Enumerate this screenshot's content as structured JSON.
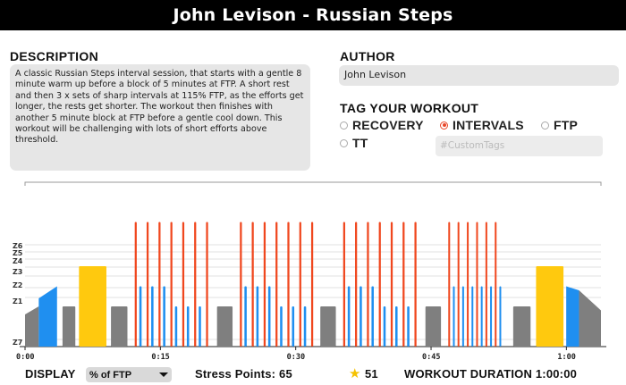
{
  "header": {
    "title": "John Levison - Russian Steps"
  },
  "description": {
    "heading": "DESCRIPTION",
    "text": "A classic Russian Steps interval session, that starts with a gentle 8 minute warm up before a block of 5 minutes at FTP. A short rest and then 3 x sets of sharp intervals at 115% FTP, as the efforts get longer, the rests get shorter. The workout then finishes with another 5 minute block at FTP before a gentle cool down. This workout will be challenging with lots of short efforts above threshold."
  },
  "author": {
    "heading": "AUTHOR",
    "value": "John Levison"
  },
  "tags": {
    "heading": "TAG YOUR WORKOUT",
    "options": [
      {
        "label": "RECOVERY",
        "checked": false
      },
      {
        "label": "INTERVALS",
        "checked": true
      },
      {
        "label": "FTP",
        "checked": false
      },
      {
        "label": "TT",
        "checked": false
      }
    ],
    "custom_placeholder": "#CustomTags"
  },
  "chart_data": {
    "type": "bar",
    "x_tick_labels": [
      "0:00",
      "0:15",
      "0:30",
      "0:45",
      "1:00"
    ],
    "y_zone_labels": [
      "Z6",
      "Z5",
      "Z4",
      "Z3",
      "Z2",
      "Z1",
      "Z7"
    ],
    "colors": {
      "grey": "#7f7f7f",
      "blue": "#1f8ff0",
      "yellow": "#ffc90e",
      "red": "#f0471e"
    },
    "blocks": [
      {
        "kind": "ramp",
        "start": 0.0,
        "end": 1.5,
        "from": 0.4,
        "to": 0.5,
        "color": "grey"
      },
      {
        "kind": "ramp",
        "start": 1.5,
        "end": 3.5,
        "from": 0.6,
        "to": 0.75,
        "color": "blue"
      },
      {
        "kind": "bar",
        "start": 4.1,
        "end": 5.5,
        "value": 0.5,
        "color": "grey"
      },
      {
        "kind": "bar",
        "start": 5.9,
        "end": 8.9,
        "value": 1.0,
        "color": "yellow"
      },
      {
        "kind": "bar",
        "start": 9.4,
        "end": 11.2,
        "value": 0.5,
        "color": "grey"
      },
      {
        "kind": "set",
        "start": 12.0,
        "reps": [
          [
            1.5,
            0.75
          ],
          [
            0.8,
            0.75
          ],
          [
            0.8,
            0.75
          ],
          [
            0.8,
            0.5
          ],
          [
            0.8,
            0.5
          ],
          [
            0.8,
            0.5
          ],
          [
            0.4
          ]
        ]
      },
      {
        "kind": "bar",
        "start": 21.0,
        "end": 22.7,
        "value": 0.5,
        "color": "grey"
      },
      {
        "kind": "set",
        "start": 23.5,
        "reps": [
          [
            1.2,
            0.75
          ],
          [
            0.8,
            0.75
          ],
          [
            0.8,
            0.75
          ],
          [
            0.8,
            0.5
          ],
          [
            0.8,
            0.5
          ],
          [
            0.8,
            0.5
          ],
          [
            0.4
          ]
        ]
      },
      {
        "kind": "bar",
        "start": 32.3,
        "end": 34.0,
        "value": 0.5,
        "color": "grey"
      },
      {
        "kind": "set",
        "start": 34.8,
        "reps": [
          [
            1.2,
            0.75
          ],
          [
            0.8,
            0.75
          ],
          [
            0.8,
            0.75
          ],
          [
            0.8,
            0.5
          ],
          [
            0.8,
            0.5
          ],
          [
            0.8,
            0.5
          ],
          [
            0.4
          ]
        ]
      },
      {
        "kind": "bar",
        "start": 43.8,
        "end": 45.5,
        "value": 0.5,
        "color": "grey"
      },
      {
        "kind": "bar",
        "start": 46.3,
        "end": 52.4,
        "value": 0.5,
        "color": "grey",
        "note": "dense block drawn as alternating intervals"
      },
      {
        "kind": "bar",
        "start": 53.4,
        "end": 55.3,
        "value": 0.5,
        "color": "grey"
      },
      {
        "kind": "bar",
        "start": 55.9,
        "end": 58.9,
        "value": 1.0,
        "color": "yellow"
      },
      {
        "kind": "ramp",
        "start": 59.2,
        "end": 60.6,
        "from": 0.75,
        "to": 0.7,
        "color": "blue"
      },
      {
        "kind": "ramp",
        "start": 60.6,
        "end": 63.0,
        "from": 0.7,
        "to": 0.45,
        "color": "grey"
      }
    ]
  },
  "footer": {
    "display_label": "DISPLAY",
    "display_value": "% of FTP",
    "stress_label": "Stress Points: 65",
    "star_icon": "star-icon",
    "star_count": "51",
    "duration_label": "WORKOUT DURATION 1:00:00"
  }
}
